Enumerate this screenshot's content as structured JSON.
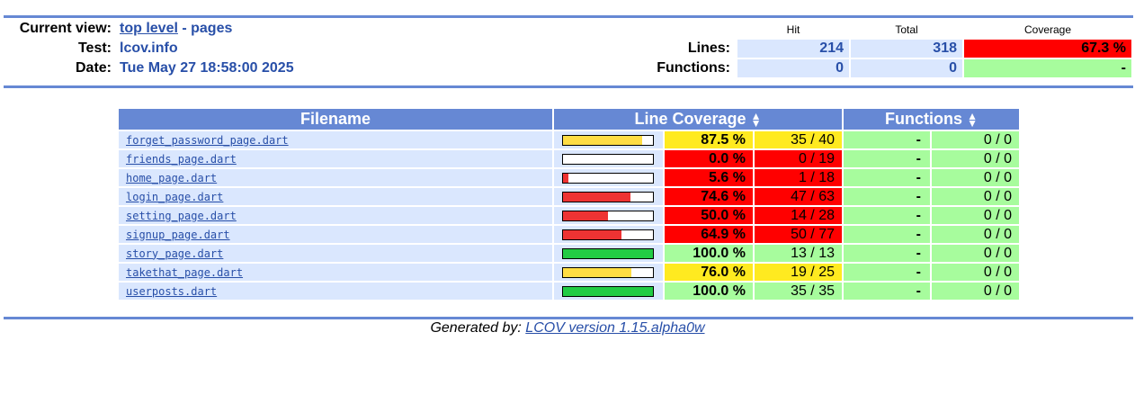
{
  "header": {
    "current_view_label": "Current view:",
    "current_view_link": "top level",
    "current_view_rest": " - pages",
    "test_label": "Test:",
    "test_value": "lcov.info",
    "date_label": "Date:",
    "date_value": "Tue May 27 18:58:00 2025"
  },
  "summary": {
    "col_hit": "Hit",
    "col_total": "Total",
    "col_coverage": "Coverage",
    "lines_label": "Lines:",
    "lines_hit": "214",
    "lines_total": "318",
    "lines_coverage": "67.3 %",
    "functions_label": "Functions:",
    "functions_hit": "0",
    "functions_total": "0",
    "functions_coverage": "-"
  },
  "table": {
    "col_filename": "Filename",
    "col_line_coverage": "Line Coverage",
    "col_functions": "Functions",
    "rows": [
      {
        "file": "forget_password_page.dart",
        "coverage": 87.5,
        "pct": "87.5 %",
        "lines": "35 / 40",
        "level": "med",
        "func_pct": "-",
        "func": "0 / 0"
      },
      {
        "file": "friends_page.dart",
        "coverage": 0.0,
        "pct": "0.0 %",
        "lines": "0 / 19",
        "level": "lo",
        "func_pct": "-",
        "func": "0 / 0"
      },
      {
        "file": "home_page.dart",
        "coverage": 5.6,
        "pct": "5.6 %",
        "lines": "1 / 18",
        "level": "lo",
        "func_pct": "-",
        "func": "0 / 0"
      },
      {
        "file": "login_page.dart",
        "coverage": 74.6,
        "pct": "74.6 %",
        "lines": "47 / 63",
        "level": "lo",
        "func_pct": "-",
        "func": "0 / 0"
      },
      {
        "file": "setting_page.dart",
        "coverage": 50.0,
        "pct": "50.0 %",
        "lines": "14 / 28",
        "level": "lo",
        "func_pct": "-",
        "func": "0 / 0"
      },
      {
        "file": "signup_page.dart",
        "coverage": 64.9,
        "pct": "64.9 %",
        "lines": "50 / 77",
        "level": "lo",
        "func_pct": "-",
        "func": "0 / 0"
      },
      {
        "file": "story_page.dart",
        "coverage": 100.0,
        "pct": "100.0 %",
        "lines": "13 / 13",
        "level": "hi",
        "func_pct": "-",
        "func": "0 / 0"
      },
      {
        "file": "takethat_page.dart",
        "coverage": 76.0,
        "pct": "76.0 %",
        "lines": "19 / 25",
        "level": "med",
        "func_pct": "-",
        "func": "0 / 0"
      },
      {
        "file": "userposts.dart",
        "coverage": 100.0,
        "pct": "100.0 %",
        "lines": "35 / 35",
        "level": "hi",
        "func_pct": "-",
        "func": "0 / 0"
      }
    ]
  },
  "colors": {
    "lo": "#ff0000",
    "med": "#ffea20",
    "hi": "#a7fc9d",
    "bar_lo": "#ee3333",
    "bar_med": "#ffdd44",
    "bar_hi": "#22cc44"
  },
  "footer": {
    "prefix": "Generated by: ",
    "link": "LCOV version 1.15.alpha0w"
  }
}
